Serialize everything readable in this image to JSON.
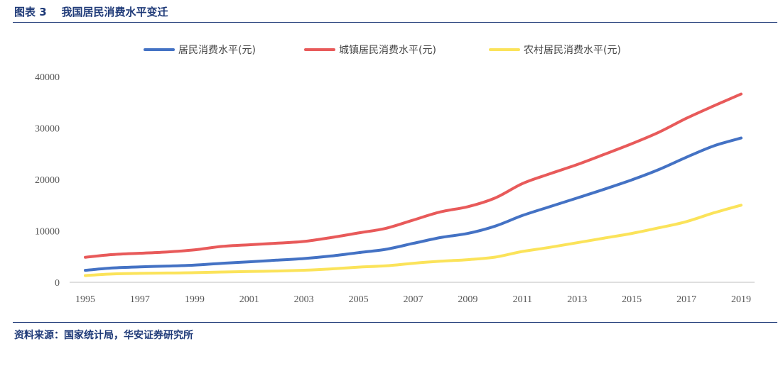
{
  "header": {
    "title": "图表 3    我国居民消费水平变迁"
  },
  "footer": {
    "source": "资料来源：国家统计局，华安证券研究所"
  },
  "chart_data": {
    "type": "line",
    "x": [
      1995,
      1996,
      1997,
      1998,
      1999,
      2000,
      2001,
      2002,
      2003,
      2004,
      2005,
      2006,
      2007,
      2008,
      2009,
      2010,
      2011,
      2012,
      2013,
      2014,
      2015,
      2016,
      2017,
      2018,
      2019
    ],
    "x_tick_labels": [
      "1995",
      "1997",
      "1999",
      "2001",
      "2003",
      "2005",
      "2007",
      "2009",
      "2011",
      "2013",
      "2015",
      "2017",
      "2019"
    ],
    "y_tick_labels": [
      "0",
      "10000",
      "20000",
      "30000",
      "40000"
    ],
    "ylim": [
      0,
      40000
    ],
    "grid": false,
    "legend_position": "top",
    "series": [
      {
        "name": "居民消费水平(元)",
        "color": "#4472c4",
        "values": [
          2330,
          2790,
          3000,
          3160,
          3350,
          3700,
          3990,
          4300,
          4620,
          5120,
          5770,
          6420,
          7570,
          8700,
          9510,
          10920,
          12990,
          14700,
          16400,
          18110,
          19920,
          21940,
          24320,
          26520,
          28060
        ]
      },
      {
        "name": "城镇居民消费水平(元)",
        "color": "#e85a5a",
        "values": [
          4870,
          5400,
          5650,
          5900,
          6300,
          6980,
          7300,
          7600,
          7940,
          8700,
          9600,
          10500,
          12100,
          13700,
          14700,
          16400,
          19200,
          21100,
          22900,
          24900,
          26950,
          29200,
          31900,
          34300,
          36600
        ]
      },
      {
        "name": "农村居民消费水平(元)",
        "color": "#fbe35a",
        "values": [
          1310,
          1630,
          1740,
          1800,
          1870,
          2000,
          2100,
          2200,
          2350,
          2600,
          2950,
          3200,
          3700,
          4100,
          4400,
          4900,
          6000,
          6800,
          7700,
          8600,
          9500,
          10600,
          11800,
          13500,
          15000
        ]
      }
    ]
  }
}
